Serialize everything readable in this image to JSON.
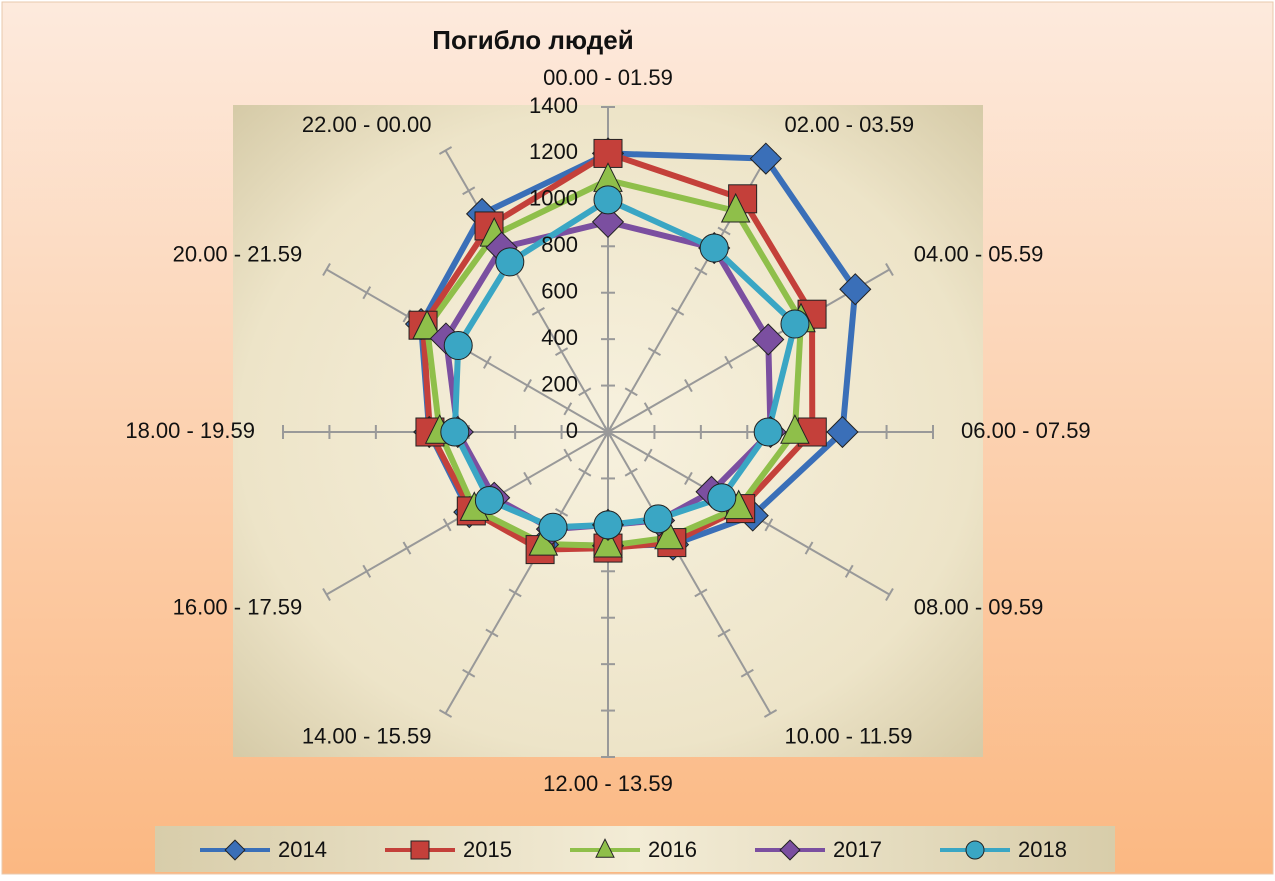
{
  "chart_data": {
    "type": "radar",
    "title": "Погибло людей",
    "categories": [
      "00.00 - 01.59",
      "02.00 - 03.59",
      "04.00 - 05.59",
      "06.00 - 07.59",
      "08.00 - 09.59",
      "10.00 - 11.59",
      "12.00 - 13.59",
      "14.00 - 15.59",
      "16.00 - 17.59",
      "18.00 - 19.59",
      "20.00 - 21.59",
      "22.00 - 00.00"
    ],
    "series": [
      {
        "name": "2014",
        "color": "#3a6fb8",
        "marker": "diamond",
        "values": [
          1200,
          1360,
          1230,
          1010,
          720,
          560,
          490,
          560,
          690,
          770,
          930,
          1085
        ]
      },
      {
        "name": "2015",
        "color": "#c4403a",
        "marker": "square",
        "values": [
          1200,
          1160,
          1015,
          880,
          660,
          550,
          500,
          585,
          680,
          767,
          920,
          1025
        ]
      },
      {
        "name": "2016",
        "color": "#8fbf4a",
        "marker": "triangle",
        "values": [
          1085,
          1100,
          960,
          805,
          650,
          525,
          490,
          557,
          665,
          725,
          900,
          980
        ]
      },
      {
        "name": "2017",
        "color": "#7b4fa0",
        "marker": "diamond",
        "values": [
          905,
          915,
          797,
          700,
          515,
          440,
          400,
          483,
          566,
          647,
          806,
          917
        ]
      },
      {
        "name": "2018",
        "color": "#3aa6c4",
        "marker": "circle",
        "values": [
          1000,
          915,
          930,
          690,
          566,
          432,
          400,
          474,
          590,
          660,
          745,
          846
        ]
      }
    ],
    "ylim": [
      0,
      1400
    ],
    "yticks": [
      0,
      200,
      400,
      600,
      800,
      1000,
      1200,
      1400
    ],
    "legend": "bottom"
  }
}
